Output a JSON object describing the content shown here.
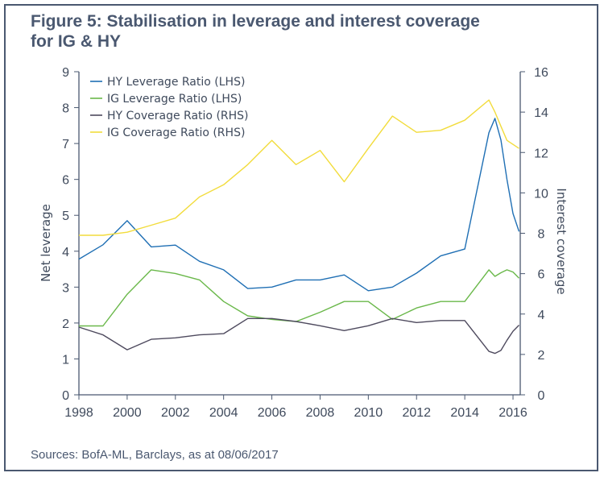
{
  "title": "Figure 5: Stabilisation in leverage and interest coverage for IG & HY",
  "source": "Sources: BofA-ML, Barclays, as at 08/06/2017",
  "chart_data": {
    "type": "line",
    "ylabel": "Net leverage",
    "y2label": "Interest coverage",
    "ylim": [
      0,
      9
    ],
    "y2lim": [
      0,
      16
    ],
    "xlim": [
      1998,
      2016.3
    ],
    "x_ticks": [
      "1998",
      "2000",
      "2002",
      "2004",
      "2006",
      "2008",
      "2010",
      "2012",
      "2014",
      "2016"
    ],
    "y_ticks": [
      "0",
      "1",
      "2",
      "3",
      "4",
      "5",
      "6",
      "7",
      "8",
      "9"
    ],
    "y2_ticks": [
      "0",
      "2",
      "4",
      "6",
      "8",
      "10",
      "12",
      "14",
      "16"
    ],
    "legend_position": "top-left",
    "grid": false,
    "series": [
      {
        "name": "HY Leverage Ratio (LHS)",
        "axis": "left",
        "color": "#1f6fb4",
        "x": [
          1998,
          1999,
          2000,
          2001,
          2002,
          2003,
          2004,
          2005,
          2006,
          2007,
          2008,
          2009,
          2010,
          2011,
          2012,
          2013,
          2014,
          2015,
          2015.25,
          2015.5,
          2015.75,
          2016,
          2016.25
        ],
        "y": [
          3.78,
          4.18,
          4.85,
          4.12,
          4.17,
          3.72,
          3.48,
          2.96,
          3.0,
          3.2,
          3.2,
          3.34,
          2.9,
          3.0,
          3.39,
          3.87,
          4.06,
          7.3,
          7.7,
          7.1,
          6.0,
          5.05,
          4.55
        ]
      },
      {
        "name": "IG Leverage Ratio (LHS)",
        "axis": "left",
        "color": "#6ab84a",
        "x": [
          1998,
          1999,
          2000,
          2001,
          2002,
          2003,
          2004,
          2005,
          2006,
          2007,
          2008,
          2009,
          2010,
          2011,
          2012,
          2013,
          2014,
          2015,
          2015.25,
          2015.5,
          2015.75,
          2016,
          2016.25
        ],
        "y": [
          1.92,
          1.92,
          2.8,
          3.48,
          3.38,
          3.2,
          2.6,
          2.2,
          2.1,
          2.04,
          2.3,
          2.6,
          2.6,
          2.1,
          2.42,
          2.6,
          2.6,
          3.48,
          3.3,
          3.4,
          3.48,
          3.42,
          3.25
        ]
      },
      {
        "name": "HY Coverage Ratio (RHS)",
        "axis": "right",
        "color": "#4e4a5e",
        "x": [
          1998,
          1999,
          2000,
          2001,
          2002,
          2003,
          2004,
          2005,
          2006,
          2007,
          2008,
          2009,
          2010,
          2011,
          2012,
          2013,
          2014,
          2015,
          2015.25,
          2015.5,
          2015.75,
          2016,
          2016.25
        ],
        "y": [
          3.35,
          2.97,
          2.23,
          2.75,
          2.82,
          2.97,
          3.03,
          3.78,
          3.78,
          3.63,
          3.42,
          3.18,
          3.42,
          3.78,
          3.58,
          3.68,
          3.68,
          2.15,
          2.05,
          2.2,
          2.7,
          3.15,
          3.45
        ]
      },
      {
        "name": "IG Coverage Ratio (RHS)",
        "axis": "right",
        "color": "#f2dc3c",
        "x": [
          1998,
          1999,
          2000,
          2001,
          2002,
          2003,
          2004,
          2005,
          2006,
          2007,
          2008,
          2009,
          2010,
          2011,
          2012,
          2013,
          2014,
          2015,
          2015.25,
          2015.5,
          2015.75,
          2016,
          2016.25
        ],
        "y": [
          7.9,
          7.9,
          8.05,
          8.4,
          8.75,
          9.8,
          10.4,
          11.4,
          12.6,
          11.4,
          12.1,
          10.55,
          12.2,
          13.8,
          13.0,
          13.1,
          13.6,
          14.6,
          14.0,
          13.3,
          12.6,
          12.4,
          12.2
        ]
      }
    ]
  }
}
